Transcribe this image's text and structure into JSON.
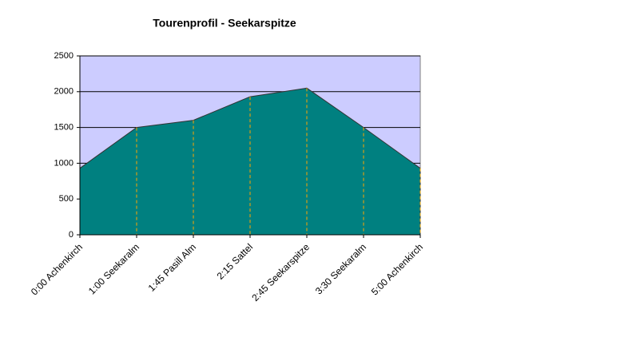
{
  "chart_data": {
    "type": "area",
    "title": "Tourenprofil - Seekarspitze",
    "categories": [
      "0:00 Achenkirch",
      "1:00 Seekaralm",
      "1:45 Pasill Alm",
      "2:15 Sattel",
      "2:45 Seekarspitze",
      "3:30 Seekaralm",
      "5:00 Achenkirch"
    ],
    "values": [
      930,
      1500,
      1600,
      1930,
      2050,
      1500,
      930
    ],
    "color": "#008080",
    "background": "#ccccff",
    "drop_line_color": "#ffa500",
    "ylim": [
      0,
      2500
    ],
    "yticks": [
      0,
      500,
      1000,
      1500,
      2000,
      2500
    ],
    "grid": true
  }
}
